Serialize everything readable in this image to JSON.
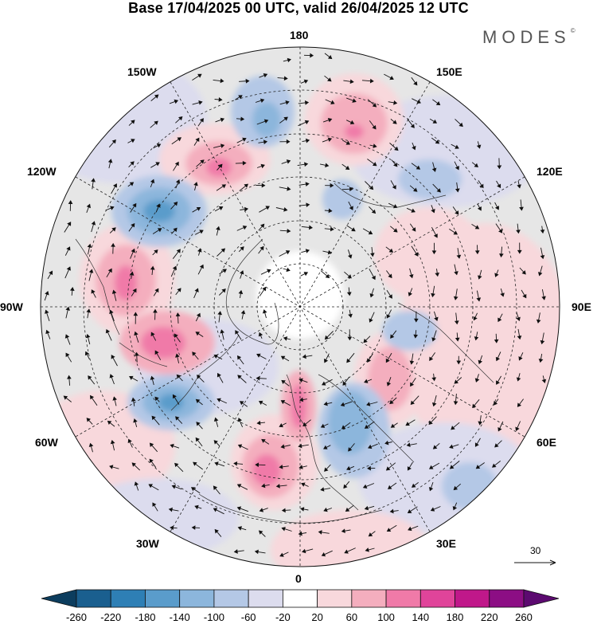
{
  "title": "Base 17/04/2025 00 UTC, valid 26/04/2025 12 UTC",
  "brand": "MODES",
  "brand_mark": "©",
  "longitude_labels": {
    "l180": "180",
    "l150e": "150E",
    "l120e": "120E",
    "l90e": "90E",
    "l60e": "60E",
    "l30e": "30E",
    "l0": "0",
    "l30w": "30W",
    "l60w": "60W",
    "l90w": "90W",
    "l120w": "120W",
    "l150w": "150W"
  },
  "reference_vector": {
    "value": "30"
  },
  "colorbar": {
    "labels": [
      "-260",
      "-220",
      "-180",
      "-140",
      "-100",
      "-60",
      "-20",
      "20",
      "60",
      "100",
      "140",
      "180",
      "220",
      "260"
    ],
    "colors": [
      "#0c3d5e",
      "#1a5f8f",
      "#2e7fb5",
      "#5a9ccb",
      "#8cb6dc",
      "#b4c8e6",
      "#dcdcee",
      "#ffffff",
      "#f8d8dc",
      "#f4aebe",
      "#f07aa8",
      "#e0449a",
      "#c0188a",
      "#8c0e84",
      "#5c0a70"
    ]
  },
  "icons": {
    "reference_arrow": "arrow-right-icon"
  }
}
